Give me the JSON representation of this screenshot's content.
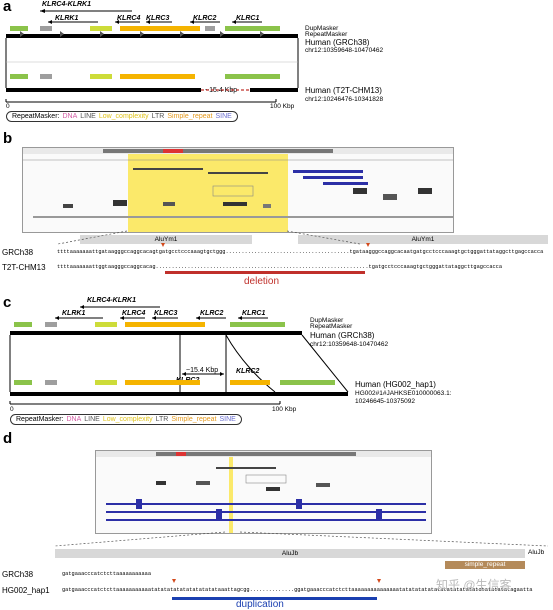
{
  "panels": {
    "a": {
      "letter": "a",
      "genes_top": {
        "span": "KLRC4-KLRK1",
        "klrk1": "KLRK1",
        "klrc4": "KLRC4",
        "klrc3": "KLRC3",
        "klrc2": "KLRC2",
        "klrc1": "KLRC1"
      },
      "track_labels": {
        "dup": "DupMasker",
        "rep": "RepeatMasker"
      },
      "assembly1": {
        "name": "Human (GRCh38)",
        "coords": "chr12:10359648-10470462"
      },
      "assembly2": {
        "name": "Human (T2T-CHM13)",
        "coords": "chr12:10246476-10341828"
      },
      "deletion_size": "~15.4 Kbp",
      "scale": {
        "zero": "0",
        "end": "100 Kbp"
      }
    },
    "b": {
      "letter": "b",
      "bars": {
        "left": "AluYm1",
        "right": "AluYm1"
      },
      "seq_ref_label": "GRCh38",
      "seq_ref_left": "ttttaaaaaaattgataagggccaggcacagtgatgcctcccaaagtgctggg",
      "seq_ref_dots": ".......................................",
      "seq_ref_right": "tgataagggccaggcacaatgatgcctcccaaagtgctgggattataggcttgagccacca",
      "seq_alt_label": "T2T-CHM13",
      "seq_alt_left": "ttttaaaaaaattggtaagggccaggcacag",
      "seq_alt_dots": "...................................................................",
      "seq_alt_right": "tgatgcctcccaaagtgctgggattataggcttgagccacca",
      "event": "deletion"
    },
    "c": {
      "letter": "c",
      "genes_top": {
        "span": "KLRC4-KLRK1",
        "klrk1": "KLRK1",
        "klrc4": "KLRC4",
        "klrc3": "KLRC3",
        "klrc2": "KLRC2",
        "klrc1": "KLRC1"
      },
      "genes_bottom": {
        "klrc2a": "KLRC2",
        "klrc2b": "KLRC2"
      },
      "track_labels": {
        "dup": "DupMasker",
        "rep": "RepeatMasker"
      },
      "assembly1": {
        "name": "Human (GRCh38)",
        "coords": "chr12:10359648-10470462"
      },
      "assembly2": {
        "name": "Human (HG002_hap1)",
        "coords1": "HG002#1#JAHKSE010000063.1:",
        "coords2": "10246645-10375092"
      },
      "dup_size": "~15.4 Kbp",
      "scale": {
        "zero": "0",
        "end": "100 Kbp"
      }
    },
    "d": {
      "letter": "d",
      "bars": {
        "alujb_left": "AluJb",
        "simple_repeat": "simple_repeat",
        "alujb_right": "AluJb"
      },
      "seq_ref_label": "GRCh38",
      "seq_ref": "gatgaaacccatctcttaaaaaaaaaaa",
      "seq_alt_label": "HG002_hap1",
      "seq_alt_left": "gatgaaacccatctcttaaaaaaaaaaa",
      "seq_alt_mid": "tatatatatatatatatatataaattagcgg",
      "seq_alt_dots": "..............",
      "seq_alt_right": "ggatgaaacccatctcttaa",
      "seq_alt_tail": "aaaaaaaaaaaaatatatatatatatatatatatatatatatatatatagaatta",
      "event": "duplication"
    }
  },
  "legend": {
    "prefix": "RepeatMasker:",
    "items": [
      {
        "label": "DNA",
        "color": "#d35ca4"
      },
      {
        "label": "LINE",
        "color": "#555555"
      },
      {
        "label": "Low_complexity",
        "color": "#e0c31a"
      },
      {
        "label": "LTR",
        "color": "#555555"
      },
      {
        "label": "Simple_repeat",
        "color": "#e59a1e"
      },
      {
        "label": "SINE",
        "color": "#6b6fd1"
      }
    ]
  },
  "watermark": "知乎 @生信客",
  "colors": {
    "deletion": "#c0302b",
    "duplication": "#1a3fb0",
    "highlight": "#fbe96a",
    "marker": "#d34a1c"
  }
}
